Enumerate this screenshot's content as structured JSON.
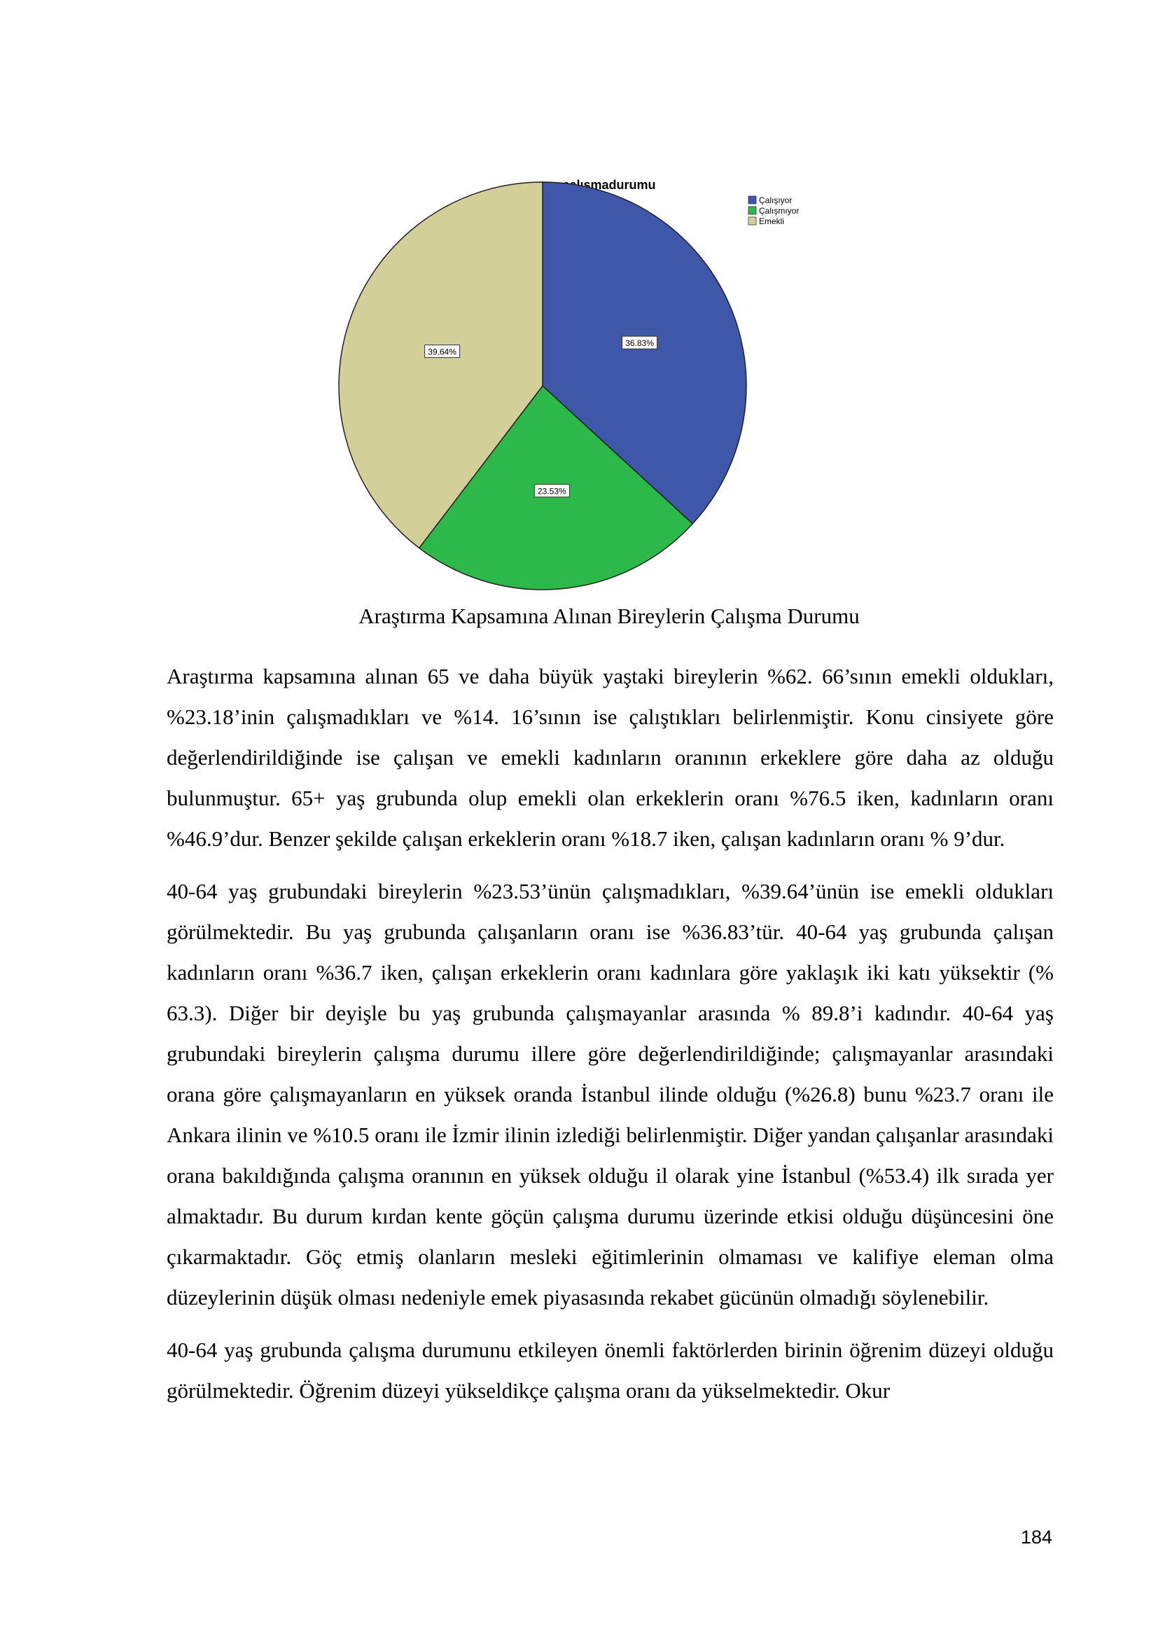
{
  "chart_data": {
    "type": "pie",
    "title": "calısmadurumu",
    "categories": [
      "Çalışıyor",
      "Çalışmıyor",
      "Emekli"
    ],
    "values": [
      36.83,
      23.53,
      39.64
    ],
    "labels": [
      "36.83%",
      "23.53%",
      "39.64%"
    ],
    "colors": [
      "#3e57a9",
      "#2db84a",
      "#d3cf98"
    ],
    "legend": "top-right",
    "start_angle": "12 o'clock, clockwise"
  },
  "caption": "Araştırma Kapsamına Alınan Bireylerin Çalışma Durumu",
  "paragraphs": [
    "Araştırma kapsamına alınan 65 ve daha büyük yaştaki bireylerin %62. 66’sının emekli oldukları, %23.18’inin çalışmadıkları ve %14. 16’sının ise çalıştıkları belirlenmiştir. Konu cinsiyete göre değerlendirildiğinde ise çalışan ve emekli kadınların oranının erkeklere göre daha az olduğu bulunmuştur. 65+ yaş grubunda olup emekli olan erkeklerin oranı %76.5 iken, kadınların oranı %46.9’dur. Benzer şekilde çalışan erkeklerin oranı %18.7 iken, çalışan kadınların oranı % 9’dur.",
    "40-64 yaş grubundaki bireylerin %23.53’ünün çalışmadıkları, %39.64’ünün ise emekli oldukları görülmektedir. Bu yaş grubunda çalışanların oranı ise %36.83’tür. 40-64 yaş grubunda çalışan kadınların oranı %36.7 iken, çalışan erkeklerin oranı kadınlara göre yaklaşık iki katı yüksektir (% 63.3). Diğer bir deyişle bu yaş grubunda çalışmayanlar arasında % 89.8’i kadındır. 40-64 yaş grubundaki bireylerin çalışma durumu illere göre değerlendirildiğinde; çalışmayanlar arasındaki orana göre çalışmayanların en yüksek oranda İstanbul ilinde olduğu (%26.8) bunu %23.7 oranı ile Ankara ilinin ve %10.5 oranı ile İzmir ilinin izlediği belirlenmiştir. Diğer yandan çalışanlar arasındaki orana bakıldığında çalışma oranının en yüksek olduğu il olarak yine İstanbul (%53.4) ilk sırada yer almaktadır. Bu durum kırdan kente göçün çalışma durumu üzerinde etkisi olduğu düşüncesini öne çıkarmaktadır. Göç etmiş olanların mesleki eğitimlerinin olmaması ve kalifiye eleman olma düzeylerinin düşük olması nedeniyle emek piyasasında rekabet gücünün olmadığı söylenebilir.",
    "40-64 yaş grubunda çalışma durumunu etkileyen önemli faktörlerden birinin öğrenim düzeyi olduğu görülmektedir. Öğrenim düzeyi yükseldikçe çalışma oranı da yükselmektedir. Okur"
  ],
  "page_number": "184"
}
